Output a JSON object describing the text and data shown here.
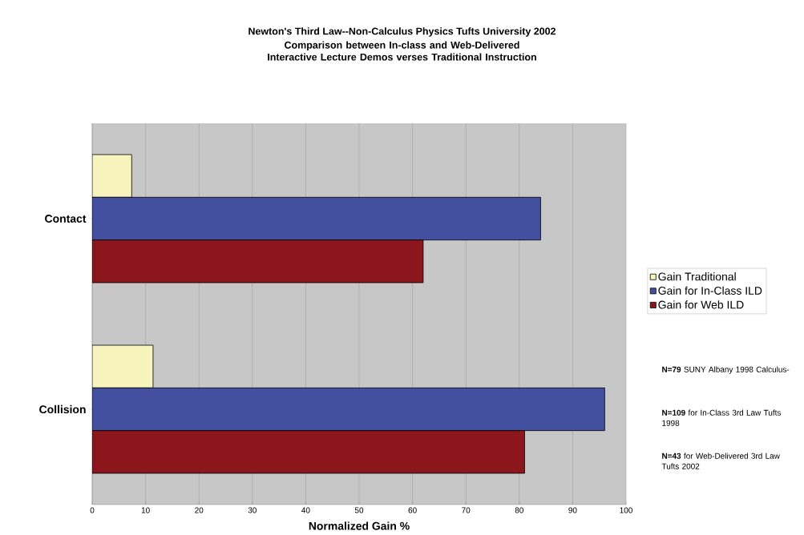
{
  "chart_data": {
    "type": "bar",
    "orientation": "horizontal",
    "title": "Newton's Third Law--Non-Calculus Physics Tufts University 2002",
    "subtitle": "Comparison between In-class and Web-Delivered Interactive Lecture Demos verses Traditional Instruction",
    "xlabel": "Normalized Gain %",
    "categories": [
      "Contact",
      "Collision"
    ],
    "series": [
      {
        "name": "Gain Traditional",
        "color": "#f7f3bd",
        "values": [
          7.4,
          11.4
        ]
      },
      {
        "name": "Gain for In-Class ILD",
        "color": "#4350a0",
        "values": [
          84,
          96
        ]
      },
      {
        "name": "Gain for Web ILD",
        "color": "#8b161b",
        "values": [
          62,
          81
        ]
      }
    ],
    "xlim": [
      0,
      100
    ],
    "xticks": [
      0,
      10,
      20,
      30,
      40,
      50,
      60,
      70,
      80,
      90,
      100
    ],
    "grid": "x",
    "legend": "right",
    "annotations": [
      "**N=79**  SUNY Albany 1998 Calculus-",
      "**N=109**  for In-Class 3rd Law Tufts 1998",
      "**N=43**  for Web-Delivered 3rd Law Tufts 2002"
    ]
  }
}
